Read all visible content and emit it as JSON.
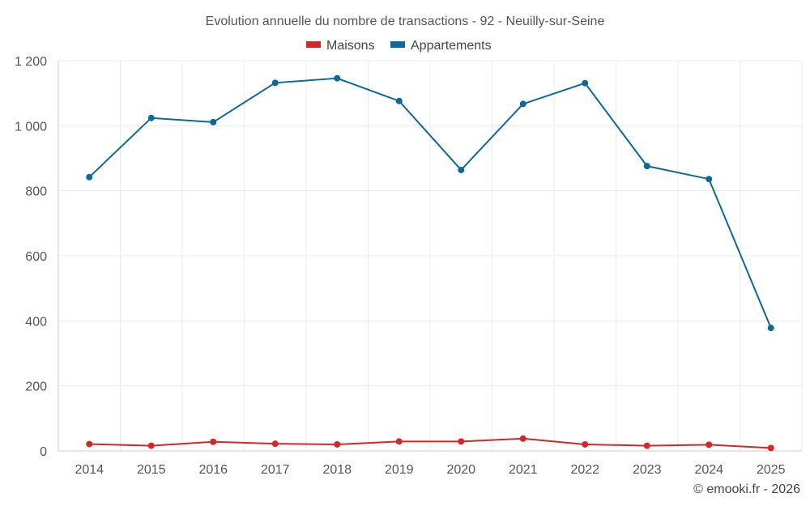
{
  "chart_data": {
    "type": "line",
    "title": "Evolution annuelle du nombre de transactions - 92 - Neuilly-sur-Seine",
    "categories": [
      "2014",
      "2015",
      "2016",
      "2017",
      "2018",
      "2019",
      "2020",
      "2021",
      "2022",
      "2023",
      "2024",
      "2025"
    ],
    "series": [
      {
        "name": "Maisons",
        "color": "#d62728",
        "values": [
          21,
          16,
          28,
          22,
          20,
          29,
          29,
          38,
          20,
          16,
          19,
          9
        ]
      },
      {
        "name": "Appartements",
        "color": "#0b6a9c",
        "values": [
          842,
          1024,
          1011,
          1132,
          1146,
          1076,
          864,
          1067,
          1131,
          876,
          836,
          378
        ]
      }
    ],
    "ylim": [
      0,
      1200
    ],
    "yticks": [
      0,
      200,
      400,
      600,
      800,
      1000,
      1200
    ],
    "ytick_labels": [
      "0",
      "200",
      "400",
      "600",
      "800",
      "1 000",
      "1 200"
    ],
    "xlabel": "",
    "ylabel": "",
    "grid": true,
    "legend_position": "top-center"
  },
  "credit": "© emooki.fr - 2026"
}
